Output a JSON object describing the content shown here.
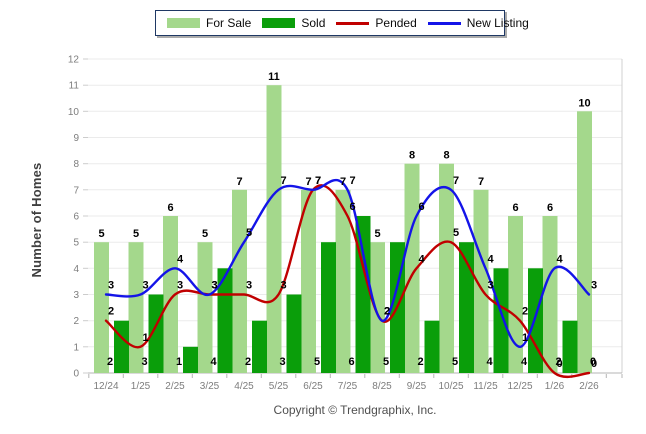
{
  "legend": {
    "items": [
      {
        "label": "For Sale",
        "type": "bar",
        "color": "#a4d88c"
      },
      {
        "label": "Sold",
        "type": "bar",
        "color": "#0a9e0a"
      },
      {
        "label": "Pended",
        "type": "line",
        "color": "#c00000"
      },
      {
        "label": "New Listing",
        "type": "line",
        "color": "#1414e8"
      }
    ]
  },
  "chart_data": {
    "type": "bar",
    "subtype": "grouped bars with smoothed overlay lines",
    "categories": [
      "12/24",
      "1/25",
      "2/25",
      "3/25",
      "4/25",
      "5/25",
      "6/25",
      "7/25",
      "8/25",
      "9/25",
      "10/25",
      "11/25",
      "12/25",
      "1/26",
      "2/26"
    ],
    "series": [
      {
        "name": "For Sale",
        "type": "bar",
        "color": "#a4d88c",
        "values": [
          5,
          5,
          6,
          5,
          7,
          11,
          7,
          7,
          5,
          8,
          8,
          7,
          6,
          6,
          10
        ]
      },
      {
        "name": "Sold",
        "type": "bar",
        "color": "#0a9e0a",
        "values": [
          2,
          3,
          1,
          4,
          2,
          3,
          5,
          6,
          5,
          2,
          5,
          4,
          4,
          2,
          0
        ]
      },
      {
        "name": "Pended",
        "type": "line",
        "color": "#c00000",
        "values": [
          2,
          1,
          3,
          3,
          3,
          3,
          7,
          6,
          2,
          4,
          5,
          3,
          2,
          0,
          0
        ]
      },
      {
        "name": "New Listing",
        "type": "line",
        "color": "#1414e8",
        "values": [
          3,
          3,
          4,
          3,
          5,
          7,
          7,
          7,
          2,
          6,
          7,
          4,
          1,
          4,
          3
        ]
      }
    ],
    "title": "",
    "xlabel": "",
    "ylabel": "Number of Homes",
    "ylim": [
      0,
      12
    ],
    "yticks": [
      0,
      1,
      2,
      3,
      4,
      5,
      6,
      7,
      8,
      9,
      10,
      11,
      12
    ],
    "grid": "horizontal",
    "legend_position": "top-center",
    "value_labels": "shown for all series; bar-sold labels at bar base",
    "colors": {
      "grid": "#ebebeb",
      "axis": "#b5b5b5",
      "right_border": "#d0d0d0",
      "tick_text": "#7d7d7d",
      "value_text": "#000000"
    }
  },
  "footer": {
    "copyright": "Copyright © Trendgraphix, Inc."
  }
}
